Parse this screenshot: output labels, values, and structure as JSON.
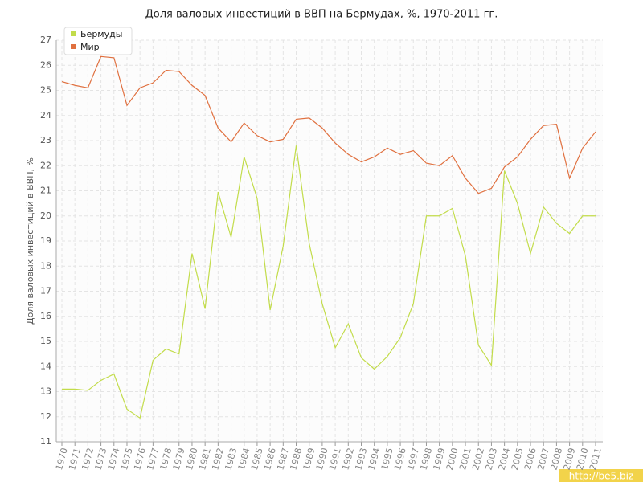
{
  "chart_data": {
    "type": "line",
    "title": "Доля валовых инвестиций в ВВП на Бермудах, %, 1970-2011 гг.",
    "y_label": "Доля валовых инвестиций в ВВП, %",
    "watermark": "http://be5.biz",
    "categories": [
      "1970",
      "1971",
      "1972",
      "1973",
      "1974",
      "1975",
      "1976",
      "1977",
      "1978",
      "1979",
      "1980",
      "1981",
      "1982",
      "1983",
      "1984",
      "1985",
      "1986",
      "1987",
      "1988",
      "1989",
      "1990",
      "1991",
      "1992",
      "1993",
      "1994",
      "1995",
      "1996",
      "1997",
      "1998",
      "1999",
      "2000",
      "2001",
      "2002",
      "2003",
      "2004",
      "2005",
      "2006",
      "2007",
      "2008",
      "2009",
      "2010",
      "2011"
    ],
    "series": [
      {
        "name": "Бермуды",
        "color": "#c2dc4a",
        "values": [
          13.1,
          13.1,
          13.05,
          13.45,
          13.7,
          12.3,
          11.95,
          14.25,
          14.7,
          14.5,
          18.5,
          16.3,
          20.95,
          19.15,
          22.35,
          20.7,
          16.25,
          18.8,
          22.8,
          18.9,
          16.5,
          14.75,
          15.7,
          14.35,
          13.9,
          14.4,
          15.15,
          16.5,
          20.0,
          20.0,
          20.3,
          18.4,
          14.85,
          14.05,
          21.8,
          20.5,
          18.5,
          20.35,
          19.7,
          19.3,
          20.0,
          20.0
        ]
      },
      {
        "name": "Мир",
        "color": "#e0703f",
        "values": [
          25.35,
          25.2,
          25.1,
          26.35,
          26.3,
          24.4,
          25.1,
          25.3,
          25.8,
          25.75,
          25.2,
          24.8,
          23.5,
          22.95,
          23.7,
          23.2,
          22.95,
          23.05,
          23.85,
          23.9,
          23.5,
          22.9,
          22.45,
          22.15,
          22.35,
          22.7,
          22.45,
          22.6,
          22.1,
          22.0,
          22.4,
          21.5,
          20.9,
          21.1,
          21.95,
          22.35,
          23.05,
          23.6,
          23.65,
          21.5,
          22.7,
          23.35
        ]
      }
    ],
    "ylim": [
      11,
      27
    ],
    "yticks": [
      11,
      12,
      13,
      14,
      15,
      16,
      17,
      18,
      19,
      20,
      21,
      22,
      23,
      24,
      25,
      26,
      27
    ],
    "grid": true,
    "legend": "top-left"
  }
}
